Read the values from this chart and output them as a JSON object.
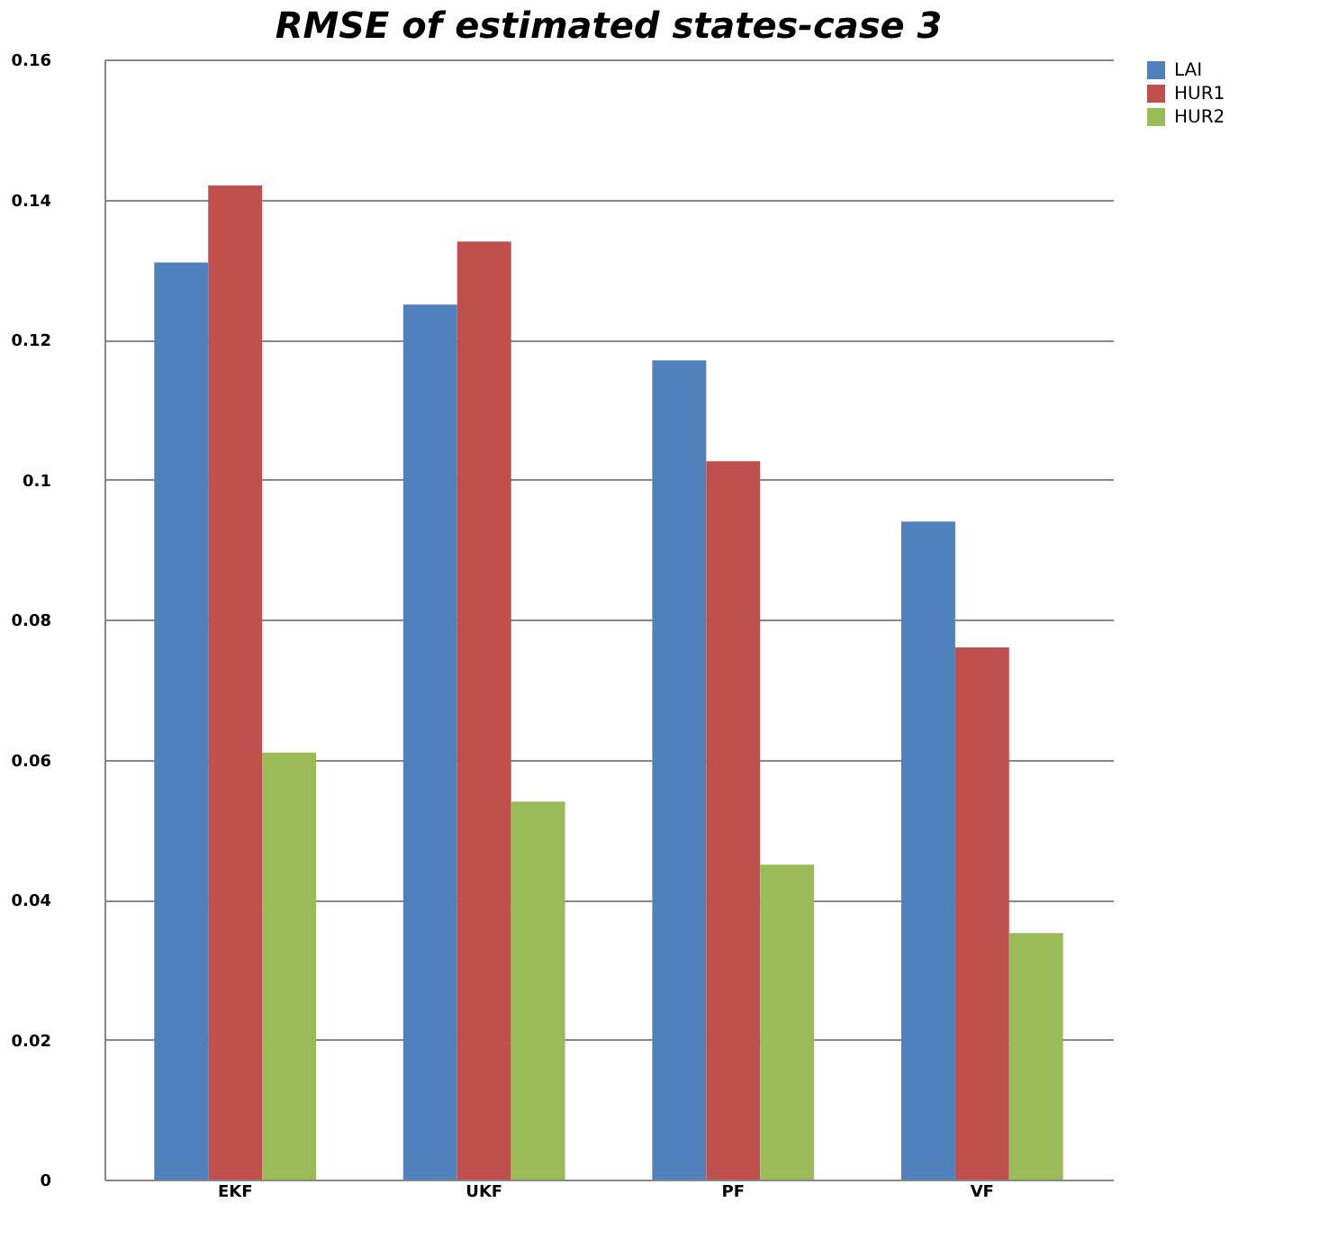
{
  "chart_data": {
    "type": "bar",
    "title": "RMSE of estimated states-case 3",
    "categories": [
      "EKF",
      "UKF",
      "PF",
      "VF"
    ],
    "series": [
      {
        "name": "LAI",
        "color": "#4f81bd",
        "values": [
          0.131,
          0.125,
          0.117,
          0.094
        ]
      },
      {
        "name": "HUR1",
        "color": "#c0504d",
        "values": [
          0.142,
          0.134,
          0.1026,
          0.076
        ]
      },
      {
        "name": "HUR2",
        "color": "#9bbb59",
        "values": [
          0.061,
          0.054,
          0.045,
          0.0352
        ]
      }
    ],
    "ylim": [
      0,
      0.16
    ],
    "yticks": [
      0,
      0.02,
      0.04,
      0.06,
      0.08,
      0.1,
      0.12,
      0.14,
      0.16
    ],
    "grid": "y",
    "legend": "right"
  }
}
